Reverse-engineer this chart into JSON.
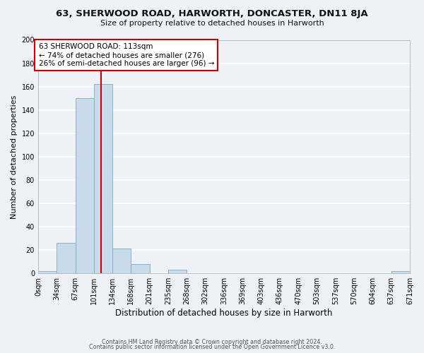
{
  "title": "63, SHERWOOD ROAD, HARWORTH, DONCASTER, DN11 8JA",
  "subtitle": "Size of property relative to detached houses in Harworth",
  "xlabel": "Distribution of detached houses by size in Harworth",
  "ylabel": "Number of detached properties",
  "bar_color": "#c9daea",
  "bar_edge_color": "#7aaac8",
  "background_color": "#eef2f7",
  "grid_color": "#ffffff",
  "vline_x": 113,
  "vline_color": "#cc0000",
  "annotation_text": "63 SHERWOOD ROAD: 113sqm\n← 74% of detached houses are smaller (276)\n26% of semi-detached houses are larger (96) →",
  "annotation_box_edgecolor": "#cc0000",
  "bin_edges": [
    0,
    33.5,
    67,
    100.5,
    134,
    167.5,
    201,
    234.5,
    268,
    301.5,
    335,
    368.5,
    402,
    435.5,
    469,
    502.5,
    536,
    569.5,
    603,
    636.5,
    670
  ],
  "bin_counts": [
    2,
    26,
    150,
    162,
    21,
    8,
    0,
    3,
    0,
    0,
    0,
    0,
    0,
    0,
    0,
    0,
    0,
    0,
    0,
    2
  ],
  "tick_labels": [
    "0sqm",
    "34sqm",
    "67sqm",
    "101sqm",
    "134sqm",
    "168sqm",
    "201sqm",
    "235sqm",
    "268sqm",
    "302sqm",
    "336sqm",
    "369sqm",
    "403sqm",
    "436sqm",
    "470sqm",
    "503sqm",
    "537sqm",
    "570sqm",
    "604sqm",
    "637sqm",
    "671sqm"
  ],
  "ylim": [
    0,
    200
  ],
  "yticks": [
    0,
    20,
    40,
    60,
    80,
    100,
    120,
    140,
    160,
    180,
    200
  ],
  "footer_line1": "Contains HM Land Registry data © Crown copyright and database right 2024.",
  "footer_line2": "Contains public sector information licensed under the Open Government Licence v3.0."
}
